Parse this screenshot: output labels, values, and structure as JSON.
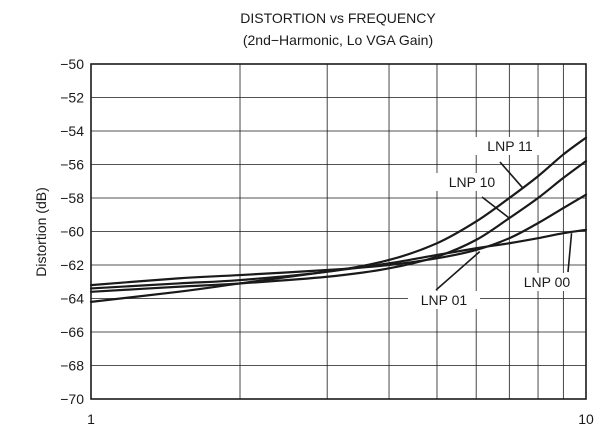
{
  "chart_data": {
    "type": "line",
    "title": "DISTORTION vs FREQUENCY",
    "subtitle": "(2nd−Harmonic, Lo VGA Gain)",
    "xlabel": "",
    "ylabel": "Distortion (dB)",
    "xscale": "log",
    "xlim": [
      1,
      10
    ],
    "ylim": [
      -70,
      -50
    ],
    "grid": true,
    "x_tick_labels": [
      "1",
      "10"
    ],
    "y_ticks": [
      -70,
      -68,
      -66,
      -64,
      -62,
      -60,
      -58,
      -56,
      -54,
      -52,
      -50
    ],
    "y_tick_labels": [
      "−70",
      "−68",
      "−66",
      "−64",
      "−62",
      "−60",
      "−58",
      "−56",
      "−54",
      "−52",
      "−50"
    ],
    "series": [
      {
        "name": "LNP 11",
        "x": [
          1,
          1.5,
          2,
          3,
          4,
          5,
          6,
          7,
          8,
          9,
          10
        ],
        "values": [
          -63.4,
          -63.1,
          -62.9,
          -62.4,
          -61.7,
          -60.7,
          -59.4,
          -58.0,
          -56.7,
          -55.4,
          -54.4
        ]
      },
      {
        "name": "LNP 10",
        "x": [
          1,
          1.5,
          2,
          3,
          4,
          5,
          6,
          7,
          8,
          9,
          10
        ],
        "values": [
          -63.6,
          -63.3,
          -63.1,
          -62.7,
          -62.2,
          -61.5,
          -60.5,
          -59.2,
          -58.0,
          -56.8,
          -55.8
        ]
      },
      {
        "name": "LNP 01",
        "x": [
          1,
          1.5,
          2,
          3,
          4,
          5,
          6,
          7,
          8,
          9,
          10
        ],
        "values": [
          -63.2,
          -62.8,
          -62.6,
          -62.3,
          -62.0,
          -61.6,
          -61.1,
          -60.4,
          -59.5,
          -58.6,
          -57.8
        ]
      },
      {
        "name": "LNP 00",
        "x": [
          1,
          1.5,
          2,
          3,
          4,
          5,
          6,
          7,
          8,
          9,
          10
        ],
        "values": [
          -64.2,
          -63.6,
          -63.1,
          -62.4,
          -61.9,
          -61.4,
          -61.0,
          -60.7,
          -60.4,
          -60.1,
          -59.9
        ]
      }
    ],
    "annotations": [
      "LNP 11",
      "LNP 10",
      "LNP 01",
      "LNP 00"
    ]
  }
}
